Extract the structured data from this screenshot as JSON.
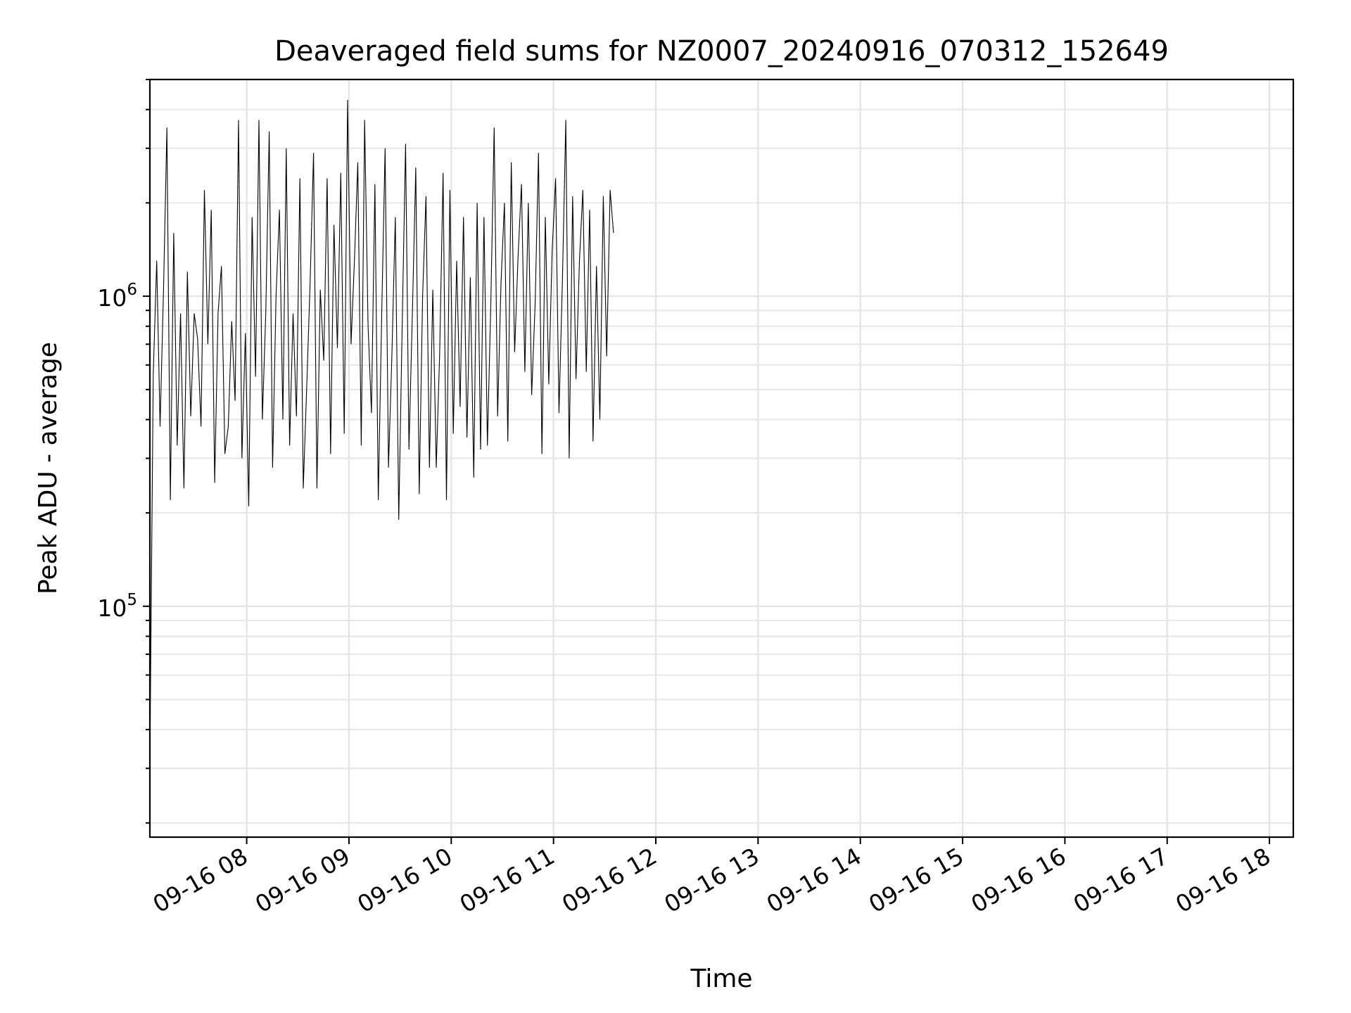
{
  "chart_data": {
    "type": "line",
    "title": "Deaveraged field sums for NZ0007_20240916_070312_152649",
    "xlabel": "Time",
    "ylabel": "Peak ADU - average",
    "x_range": [
      "2024-09-16T07:03:12",
      "2024-09-16T18:14:00"
    ],
    "xticks": [
      "09-16 08",
      "09-16 09",
      "09-16 10",
      "09-16 11",
      "09-16 12",
      "09-16 13",
      "09-16 14",
      "09-16 15",
      "09-16 16",
      "09-16 17",
      "09-16 18"
    ],
    "xtick_rotation_deg": 30,
    "yscale": "log",
    "ylim": [
      18000,
      5000000
    ],
    "yticks": [
      {
        "base": "10",
        "exp": "5",
        "value": 100000
      },
      {
        "base": "10",
        "exp": "6",
        "value": 1000000
      }
    ],
    "grid": true,
    "line_color": "#000000",
    "series": [
      {
        "x_start": "2024-09-16T07:03:12",
        "x_step_minutes": 2,
        "values": [
          32000,
          560000,
          1300000,
          380000,
          1050000,
          3500000,
          220000,
          1600000,
          330000,
          880000,
          240000,
          1200000,
          410000,
          880000,
          730000,
          380000,
          2200000,
          700000,
          1900000,
          250000,
          880000,
          1250000,
          310000,
          380000,
          830000,
          460000,
          3700000,
          300000,
          760000,
          210000,
          1800000,
          550000,
          3700000,
          400000,
          880000,
          3400000,
          280000,
          1000000,
          1900000,
          400000,
          3000000,
          330000,
          880000,
          410000,
          2400000,
          240000,
          510000,
          1100000,
          2900000,
          240000,
          1050000,
          620000,
          2400000,
          310000,
          1700000,
          680000,
          2500000,
          360000,
          4300000,
          700000,
          1300000,
          2700000,
          330000,
          3700000,
          800000,
          420000,
          2300000,
          220000,
          880000,
          3000000,
          280000,
          650000,
          1800000,
          190000,
          790000,
          3100000,
          320000,
          890000,
          2600000,
          230000,
          1000000,
          2100000,
          280000,
          1050000,
          280000,
          650000,
          2500000,
          220000,
          2200000,
          360000,
          1300000,
          440000,
          1800000,
          350000,
          1150000,
          260000,
          2000000,
          320000,
          1800000,
          330000,
          940000,
          3500000,
          410000,
          1100000,
          2000000,
          340000,
          2700000,
          660000,
          1350000,
          2300000,
          570000,
          2000000,
          480000,
          940000,
          2900000,
          310000,
          1800000,
          520000,
          1400000,
          2400000,
          420000,
          1100000,
          3700000,
          300000,
          2100000,
          540000,
          1300000,
          2200000,
          570000,
          1900000,
          340000,
          1250000,
          400000,
          2100000,
          640000,
          2200000,
          1600000
        ]
      }
    ]
  }
}
